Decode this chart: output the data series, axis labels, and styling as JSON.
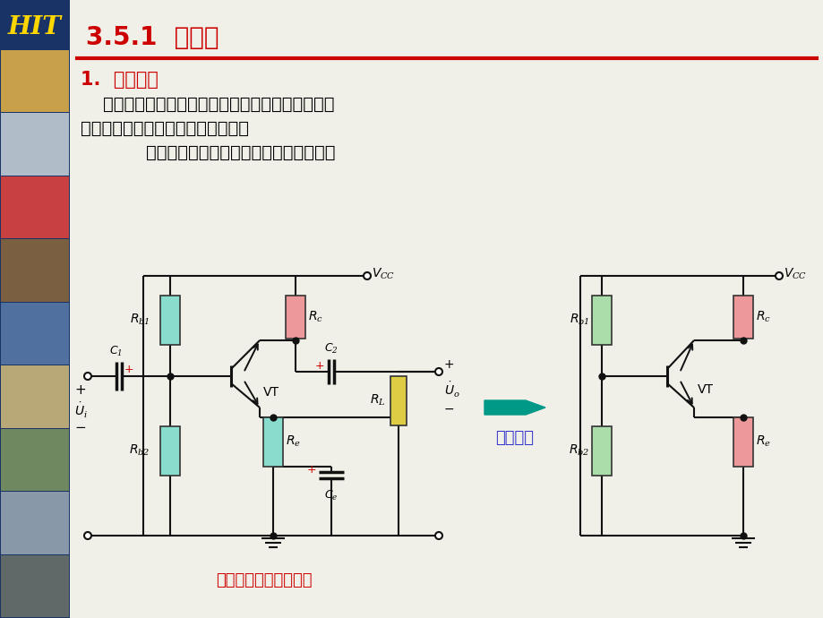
{
  "title": "3.5.1  图解法",
  "title_color": "#cc0000",
  "title_fontsize": 20,
  "divider_color": "#cc0000",
  "section_label": "1.  静态分析",
  "section_color": "#cc0000",
  "section_fontsize": 15,
  "body_text1": "    对分压偏置共射基本放大电路进行静态图解分析，",
  "body_text2": "求解静态工作点。其求解过程如下：",
  "body_text3": "    先画出分压偏置共射放大电路的直流通路",
  "body_color": "#000000",
  "body_fontsize": 14,
  "circuit_label": "分压偏置共射放大电路",
  "circuit_label_color": "#cc0000",
  "dc_path_label": "直流通路",
  "dc_path_color": "#3333cc",
  "arrow_color": "#009988",
  "sidebar_bg": "#1a3366",
  "bg_color": "#f0f0e8",
  "resistor_cyan": "#88ddcc",
  "resistor_pink": "#ee9999",
  "resistor_green": "#aaddaa",
  "resistor_yellow": "#ddcc44",
  "wire_color": "#111111",
  "red_color": "#cc0000"
}
